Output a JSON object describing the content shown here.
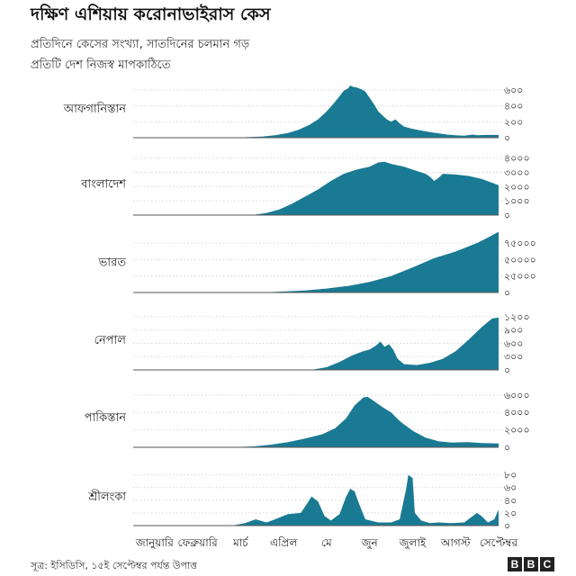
{
  "title": "দক্ষিণ এশিয়ায় করোনাভাইরাস কেস",
  "subtitle_1": "প্রতিদিনে কেসের সংখ্যা, সাতদিনের চলমান গড়",
  "subtitle_2": "প্রতিটি দেশ নিজস্ব মাপকাঠিতে",
  "source": "সূত্র: ইসিডিসি, ১৫ই সেপ্টেম্বর পর্যন্ত উপাত্ত",
  "logo_letters": [
    "B",
    "B",
    "C"
  ],
  "colors": {
    "area": "#1a7a93",
    "grid": "#d6d6d6",
    "baseline": "#555555"
  },
  "chart_data": {
    "type": "area",
    "x_unit": "month index (0 = 1 January 2020)",
    "x_range": [
      0,
      8.5
    ],
    "months": [
      "জানুয়ারি",
      "ফেব্রুয়ারি",
      "মার্চ",
      "এপ্রিল",
      "মে",
      "জুন",
      "জুলাই",
      "আগস্ট",
      "সেপ্টেম্বর"
    ],
    "series": [
      {
        "name": "আফগানিস্তান",
        "ylim": [
          0,
          700
        ],
        "ticks": [
          0,
          200,
          400,
          600
        ],
        "tick_labels": [
          "০",
          "২০০",
          "৪০০",
          "৬০০"
        ],
        "points": [
          [
            0,
            0
          ],
          [
            2.0,
            0
          ],
          [
            2.5,
            5
          ],
          [
            3.0,
            15
          ],
          [
            3.3,
            30
          ],
          [
            3.6,
            60
          ],
          [
            3.85,
            100
          ],
          [
            4.1,
            160
          ],
          [
            4.3,
            230
          ],
          [
            4.5,
            330
          ],
          [
            4.65,
            420
          ],
          [
            4.8,
            520
          ],
          [
            4.9,
            590
          ],
          [
            5.0,
            620
          ],
          [
            5.05,
            655
          ],
          [
            5.1,
            640
          ],
          [
            5.2,
            630
          ],
          [
            5.3,
            610
          ],
          [
            5.4,
            580
          ],
          [
            5.5,
            500
          ],
          [
            5.6,
            420
          ],
          [
            5.7,
            330
          ],
          [
            5.8,
            280
          ],
          [
            5.9,
            230
          ],
          [
            6.0,
            200
          ],
          [
            6.1,
            230
          ],
          [
            6.2,
            180
          ],
          [
            6.3,
            140
          ],
          [
            6.5,
            110
          ],
          [
            6.7,
            90
          ],
          [
            6.9,
            70
          ],
          [
            7.1,
            55
          ],
          [
            7.3,
            40
          ],
          [
            7.5,
            30
          ],
          [
            7.7,
            25
          ],
          [
            7.9,
            40
          ],
          [
            8.0,
            30
          ],
          [
            8.2,
            35
          ],
          [
            8.5,
            35
          ]
        ]
      },
      {
        "name": "বাংলাদেশ",
        "ylim": [
          0,
          4300
        ],
        "ticks": [
          0,
          1000,
          2000,
          3000,
          4000
        ],
        "tick_labels": [
          "০",
          "১০০০",
          "২০০০",
          "৩০০০",
          "৪০০০"
        ],
        "points": [
          [
            0,
            0
          ],
          [
            2.2,
            0
          ],
          [
            2.8,
            20
          ],
          [
            3.1,
            150
          ],
          [
            3.4,
            400
          ],
          [
            3.7,
            800
          ],
          [
            4.0,
            1300
          ],
          [
            4.3,
            1800
          ],
          [
            4.6,
            2400
          ],
          [
            4.9,
            2900
          ],
          [
            5.2,
            3200
          ],
          [
            5.5,
            3400
          ],
          [
            5.7,
            3700
          ],
          [
            5.85,
            3750
          ],
          [
            6.0,
            3600
          ],
          [
            6.3,
            3400
          ],
          [
            6.6,
            3100
          ],
          [
            6.8,
            2900
          ],
          [
            6.9,
            2700
          ],
          [
            7.0,
            2400
          ],
          [
            7.1,
            2600
          ],
          [
            7.2,
            2900
          ],
          [
            7.5,
            2850
          ],
          [
            7.8,
            2750
          ],
          [
            8.1,
            2550
          ],
          [
            8.5,
            2100
          ]
        ]
      },
      {
        "name": "ভারত",
        "ylim": [
          0,
          90000
        ],
        "ticks": [
          0,
          25000,
          50000,
          75000
        ],
        "tick_labels": [
          "০",
          "২৫০০০",
          "৫০০০০",
          "৭৫০০০"
        ],
        "points": [
          [
            0,
            0
          ],
          [
            2.3,
            0
          ],
          [
            3.0,
            200
          ],
          [
            3.5,
            1500
          ],
          [
            4.0,
            3000
          ],
          [
            4.5,
            6000
          ],
          [
            5.0,
            10000
          ],
          [
            5.5,
            16000
          ],
          [
            6.0,
            25000
          ],
          [
            6.5,
            38000
          ],
          [
            7.0,
            52000
          ],
          [
            7.5,
            62000
          ],
          [
            8.0,
            75000
          ],
          [
            8.3,
            85000
          ],
          [
            8.5,
            92000
          ]
        ]
      },
      {
        "name": "নেপাল",
        "ylim": [
          0,
          1300
        ],
        "ticks": [
          0,
          300,
          600,
          900,
          1200
        ],
        "tick_labels": [
          "০",
          "৩০০",
          "৬০০",
          "৯০০",
          "১২০০"
        ],
        "points": [
          [
            0,
            0
          ],
          [
            3.5,
            0
          ],
          [
            4.2,
            10
          ],
          [
            4.5,
            60
          ],
          [
            4.8,
            180
          ],
          [
            5.1,
            330
          ],
          [
            5.35,
            420
          ],
          [
            5.5,
            460
          ],
          [
            5.65,
            550
          ],
          [
            5.75,
            640
          ],
          [
            5.85,
            520
          ],
          [
            5.95,
            580
          ],
          [
            6.05,
            450
          ],
          [
            6.15,
            250
          ],
          [
            6.3,
            130
          ],
          [
            6.6,
            110
          ],
          [
            6.9,
            160
          ],
          [
            7.2,
            250
          ],
          [
            7.5,
            420
          ],
          [
            7.8,
            680
          ],
          [
            8.1,
            960
          ],
          [
            8.35,
            1160
          ],
          [
            8.5,
            1180
          ]
        ]
      },
      {
        "name": "পাকিস্তান",
        "ylim": [
          0,
          6600
        ],
        "ticks": [
          0,
          2000,
          4000,
          6000
        ],
        "tick_labels": [
          "০",
          "২০০০",
          "৪০০০",
          "৬০০০"
        ],
        "points": [
          [
            0,
            0
          ],
          [
            2.2,
            0
          ],
          [
            2.8,
            100
          ],
          [
            3.2,
            300
          ],
          [
            3.6,
            600
          ],
          [
            4.0,
            1000
          ],
          [
            4.4,
            1500
          ],
          [
            4.7,
            2200
          ],
          [
            4.95,
            3300
          ],
          [
            5.15,
            4800
          ],
          [
            5.35,
            5700
          ],
          [
            5.45,
            5800
          ],
          [
            5.6,
            5300
          ],
          [
            5.8,
            4600
          ],
          [
            6.0,
            4000
          ],
          [
            6.2,
            3000
          ],
          [
            6.5,
            1900
          ],
          [
            6.8,
            1100
          ],
          [
            7.1,
            700
          ],
          [
            7.4,
            550
          ],
          [
            7.8,
            600
          ],
          [
            8.1,
            500
          ],
          [
            8.5,
            430
          ]
        ]
      },
      {
        "name": "শ্রীলংকা",
        "ylim": [
          0,
          88
        ],
        "ticks": [
          0,
          20,
          40,
          60,
          80
        ],
        "tick_labels": [
          "০",
          "২০",
          "৪০",
          "৬০",
          "৮০"
        ],
        "points": [
          [
            0,
            0
          ],
          [
            2.3,
            0
          ],
          [
            2.6,
            4
          ],
          [
            2.85,
            10
          ],
          [
            3.1,
            5
          ],
          [
            3.3,
            10
          ],
          [
            3.6,
            18
          ],
          [
            3.9,
            20
          ],
          [
            4.05,
            35
          ],
          [
            4.15,
            46
          ],
          [
            4.3,
            38
          ],
          [
            4.45,
            15
          ],
          [
            4.6,
            8
          ],
          [
            4.8,
            18
          ],
          [
            4.95,
            45
          ],
          [
            5.05,
            58
          ],
          [
            5.15,
            54
          ],
          [
            5.25,
            35
          ],
          [
            5.4,
            10
          ],
          [
            5.7,
            5
          ],
          [
            6.0,
            5
          ],
          [
            6.2,
            10
          ],
          [
            6.35,
            58
          ],
          [
            6.4,
            80
          ],
          [
            6.5,
            75
          ],
          [
            6.55,
            20
          ],
          [
            6.7,
            8
          ],
          [
            6.9,
            4
          ],
          [
            7.1,
            5
          ],
          [
            7.4,
            4
          ],
          [
            7.7,
            5
          ],
          [
            7.9,
            15
          ],
          [
            8.0,
            20
          ],
          [
            8.1,
            15
          ],
          [
            8.25,
            5
          ],
          [
            8.4,
            10
          ],
          [
            8.5,
            25
          ]
        ]
      }
    ]
  }
}
